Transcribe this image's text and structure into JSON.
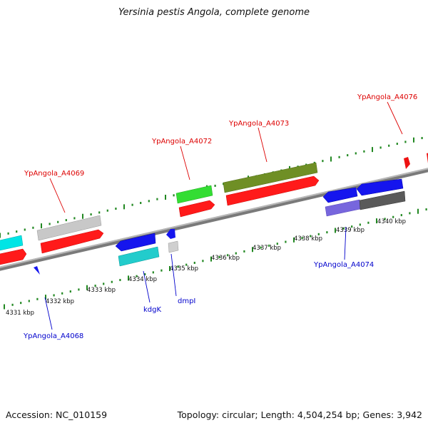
{
  "title": "Yersinia pestis Angola, complete genome",
  "footer": {
    "accession": "Accession: NC_010159",
    "topology": "Topology: circular; Length: 4,504,254 bp; Genes: 3,942"
  },
  "colors": {
    "cds_forward": "#ff0000",
    "cds_reverse": "#0000ee",
    "gene_green": "#33cc33",
    "gene_olive": "#6b8e23",
    "gene_gray": "#c0c0c0",
    "gene_cyan": "#00cccc",
    "gene_purple": "#7766dd",
    "gene_dark_gray": "#555555",
    "label_forward": "#dd0000",
    "label_reverse": "#0000cc",
    "tick_dot": "#228822",
    "backbone": "#888888"
  },
  "ticks": [
    "4331 kbp",
    "4332 kbp",
    "4333 kbp",
    "4334 kbp",
    "4335 kbp",
    "4336 kbp",
    "4337 kbp",
    "4338 kbp",
    "4339 kbp",
    "4340 kbp"
  ],
  "gene_labels": {
    "upper": [
      "YpAngola_A4069",
      "YpAngola_A4072",
      "YpAngola_A4073",
      "YpAngola_A4076"
    ],
    "lower": [
      "YpAngola_A4068",
      "kdgK",
      "dmpI",
      "YpAngola_A4074"
    ]
  }
}
